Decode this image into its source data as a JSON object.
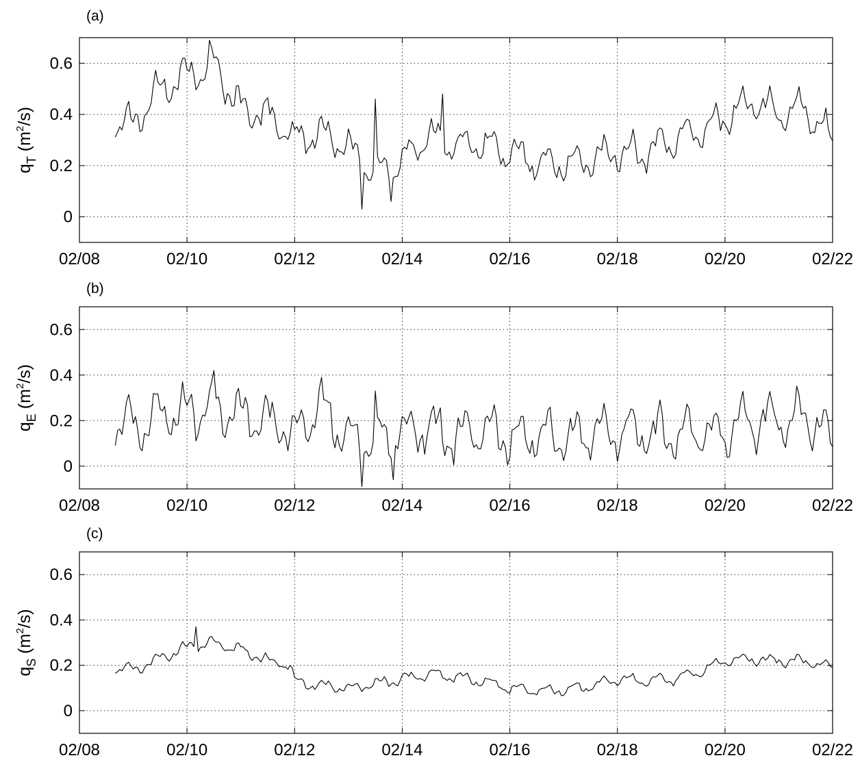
{
  "chart_data": [
    {
      "type": "line",
      "panel_label": "(a)",
      "ylabel": {
        "base": "q",
        "subscript": "T",
        "unit_open": " (m",
        "superscript": "2",
        "unit_close": "/s)"
      },
      "x_ticks": [
        "02/08",
        "02/10",
        "02/12",
        "02/14",
        "02/16",
        "02/18",
        "02/20",
        "02/22"
      ],
      "xlim": [
        "02/08",
        "02/22"
      ],
      "y_ticks": [
        "0",
        "0.2",
        "0.4",
        "0.6"
      ],
      "ylim": [
        -0.1,
        0.7
      ],
      "grid": true,
      "series": [
        {
          "x": [
            "02/08 16:00",
            "02/09 00:00",
            "02/09 12:00",
            "02/10 00:00",
            "02/10 12:00",
            "02/11 00:00",
            "02/11 12:00",
            "02/12 00:00",
            "02/12 12:00",
            "02/13 00:00",
            "02/13 12:00",
            "02/14 00:00",
            "02/14 12:00",
            "02/15 00:00",
            "02/15 12:00",
            "02/16 00:00",
            "02/16 12:00",
            "02/17 00:00",
            "02/17 12:00",
            "02/18 00:00",
            "02/18 12:00",
            "02/19 00:00",
            "02/19 12:00",
            "02/20 00:00",
            "02/20 12:00",
            "02/21 00:00",
            "02/21 12:00",
            "02/22 00:00"
          ],
          "values": [
            0.38,
            0.37,
            0.5,
            0.55,
            0.6,
            0.42,
            0.4,
            0.3,
            0.33,
            0.27,
            0.17,
            0.22,
            0.32,
            0.28,
            0.28,
            0.25,
            0.22,
            0.2,
            0.22,
            0.26,
            0.25,
            0.3,
            0.34,
            0.38,
            0.45,
            0.4,
            0.42,
            0.3
          ],
          "amp": 0.07,
          "spikes": [
            [
              "02/10 10:00",
              0.69
            ],
            [
              "02/13 06:00",
              0.03
            ],
            [
              "02/13 19:00",
              0.06
            ],
            [
              "02/13 12:00",
              0.46
            ],
            [
              "02/14 18:00",
              0.48
            ]
          ]
        }
      ]
    },
    {
      "type": "line",
      "panel_label": "(b)",
      "ylabel": {
        "base": "q",
        "subscript": "E",
        "unit_open": " (m",
        "superscript": "2",
        "unit_close": "/s)"
      },
      "x_ticks": [
        "02/08",
        "02/10",
        "02/12",
        "02/14",
        "02/16",
        "02/18",
        "02/20",
        "02/22"
      ],
      "xlim": [
        "02/08",
        "02/22"
      ],
      "y_ticks": [
        "0",
        "0.2",
        "0.4",
        "0.6"
      ],
      "ylim": [
        -0.1,
        0.7
      ],
      "grid": true,
      "series": [
        {
          "x": [
            "02/08 16:00",
            "02/09 00:00",
            "02/09 12:00",
            "02/10 00:00",
            "02/10 12:00",
            "02/11 00:00",
            "02/11 12:00",
            "02/12 00:00",
            "02/12 12:00",
            "02/13 00:00",
            "02/13 12:00",
            "02/14 00:00",
            "02/14 12:00",
            "02/15 00:00",
            "02/15 12:00",
            "02/16 00:00",
            "02/16 12:00",
            "02/17 00:00",
            "02/17 12:00",
            "02/18 00:00",
            "02/18 12:00",
            "02/19 00:00",
            "02/19 12:00",
            "02/20 00:00",
            "02/20 12:00",
            "02/21 00:00",
            "02/21 12:00",
            "02/22 00:00"
          ],
          "values": [
            0.2,
            0.18,
            0.22,
            0.24,
            0.26,
            0.22,
            0.2,
            0.15,
            0.25,
            0.12,
            0.12,
            0.15,
            0.18,
            0.12,
            0.17,
            0.12,
            0.14,
            0.12,
            0.15,
            0.15,
            0.14,
            0.14,
            0.15,
            0.14,
            0.2,
            0.2,
            0.22,
            0.12
          ],
          "amp": 0.11,
          "spikes": [
            [
              "02/10 12:00",
              0.42
            ],
            [
              "02/12 12:00",
              0.39
            ],
            [
              "02/13 06:00",
              -0.09
            ],
            [
              "02/13 12:00",
              0.33
            ],
            [
              "02/13 20:00",
              -0.06
            ]
          ]
        }
      ]
    },
    {
      "type": "line",
      "panel_label": "(c)",
      "ylabel": {
        "base": "q",
        "subscript": "S",
        "unit_open": " (m",
        "superscript": "2",
        "unit_close": "/s)"
      },
      "x_ticks": [
        "02/08",
        "02/10",
        "02/12",
        "02/14",
        "02/16",
        "02/18",
        "02/20",
        "02/22"
      ],
      "xlim": [
        "02/08",
        "02/22"
      ],
      "y_ticks": [
        "0",
        "0.2",
        "0.4",
        "0.6"
      ],
      "ylim": [
        -0.1,
        0.7
      ],
      "grid": true,
      "series": [
        {
          "x": [
            "02/08 16:00",
            "02/09 00:00",
            "02/09 12:00",
            "02/10 00:00",
            "02/10 12:00",
            "02/11 00:00",
            "02/11 12:00",
            "02/11 22:00",
            "02/12 00:00",
            "02/12 12:00",
            "02/13 00:00",
            "02/13 12:00",
            "02/14 00:00",
            "02/14 12:00",
            "02/15 00:00",
            "02/15 12:00",
            "02/16 00:00",
            "02/16 12:00",
            "02/17 00:00",
            "02/17 12:00",
            "02/18 00:00",
            "02/18 12:00",
            "02/19 00:00",
            "02/19 12:00",
            "02/20 00:00",
            "02/20 12:00",
            "02/21 00:00",
            "02/21 12:00",
            "02/22 00:00"
          ],
          "values": [
            0.19,
            0.18,
            0.23,
            0.28,
            0.3,
            0.27,
            0.22,
            0.2,
            0.13,
            0.11,
            0.1,
            0.12,
            0.14,
            0.16,
            0.15,
            0.13,
            0.1,
            0.09,
            0.09,
            0.11,
            0.14,
            0.13,
            0.14,
            0.17,
            0.22,
            0.23,
            0.22,
            0.22,
            0.19
          ],
          "amp": 0.025,
          "spikes": [
            [
              "02/10 04:00",
              0.37
            ]
          ]
        }
      ]
    }
  ]
}
